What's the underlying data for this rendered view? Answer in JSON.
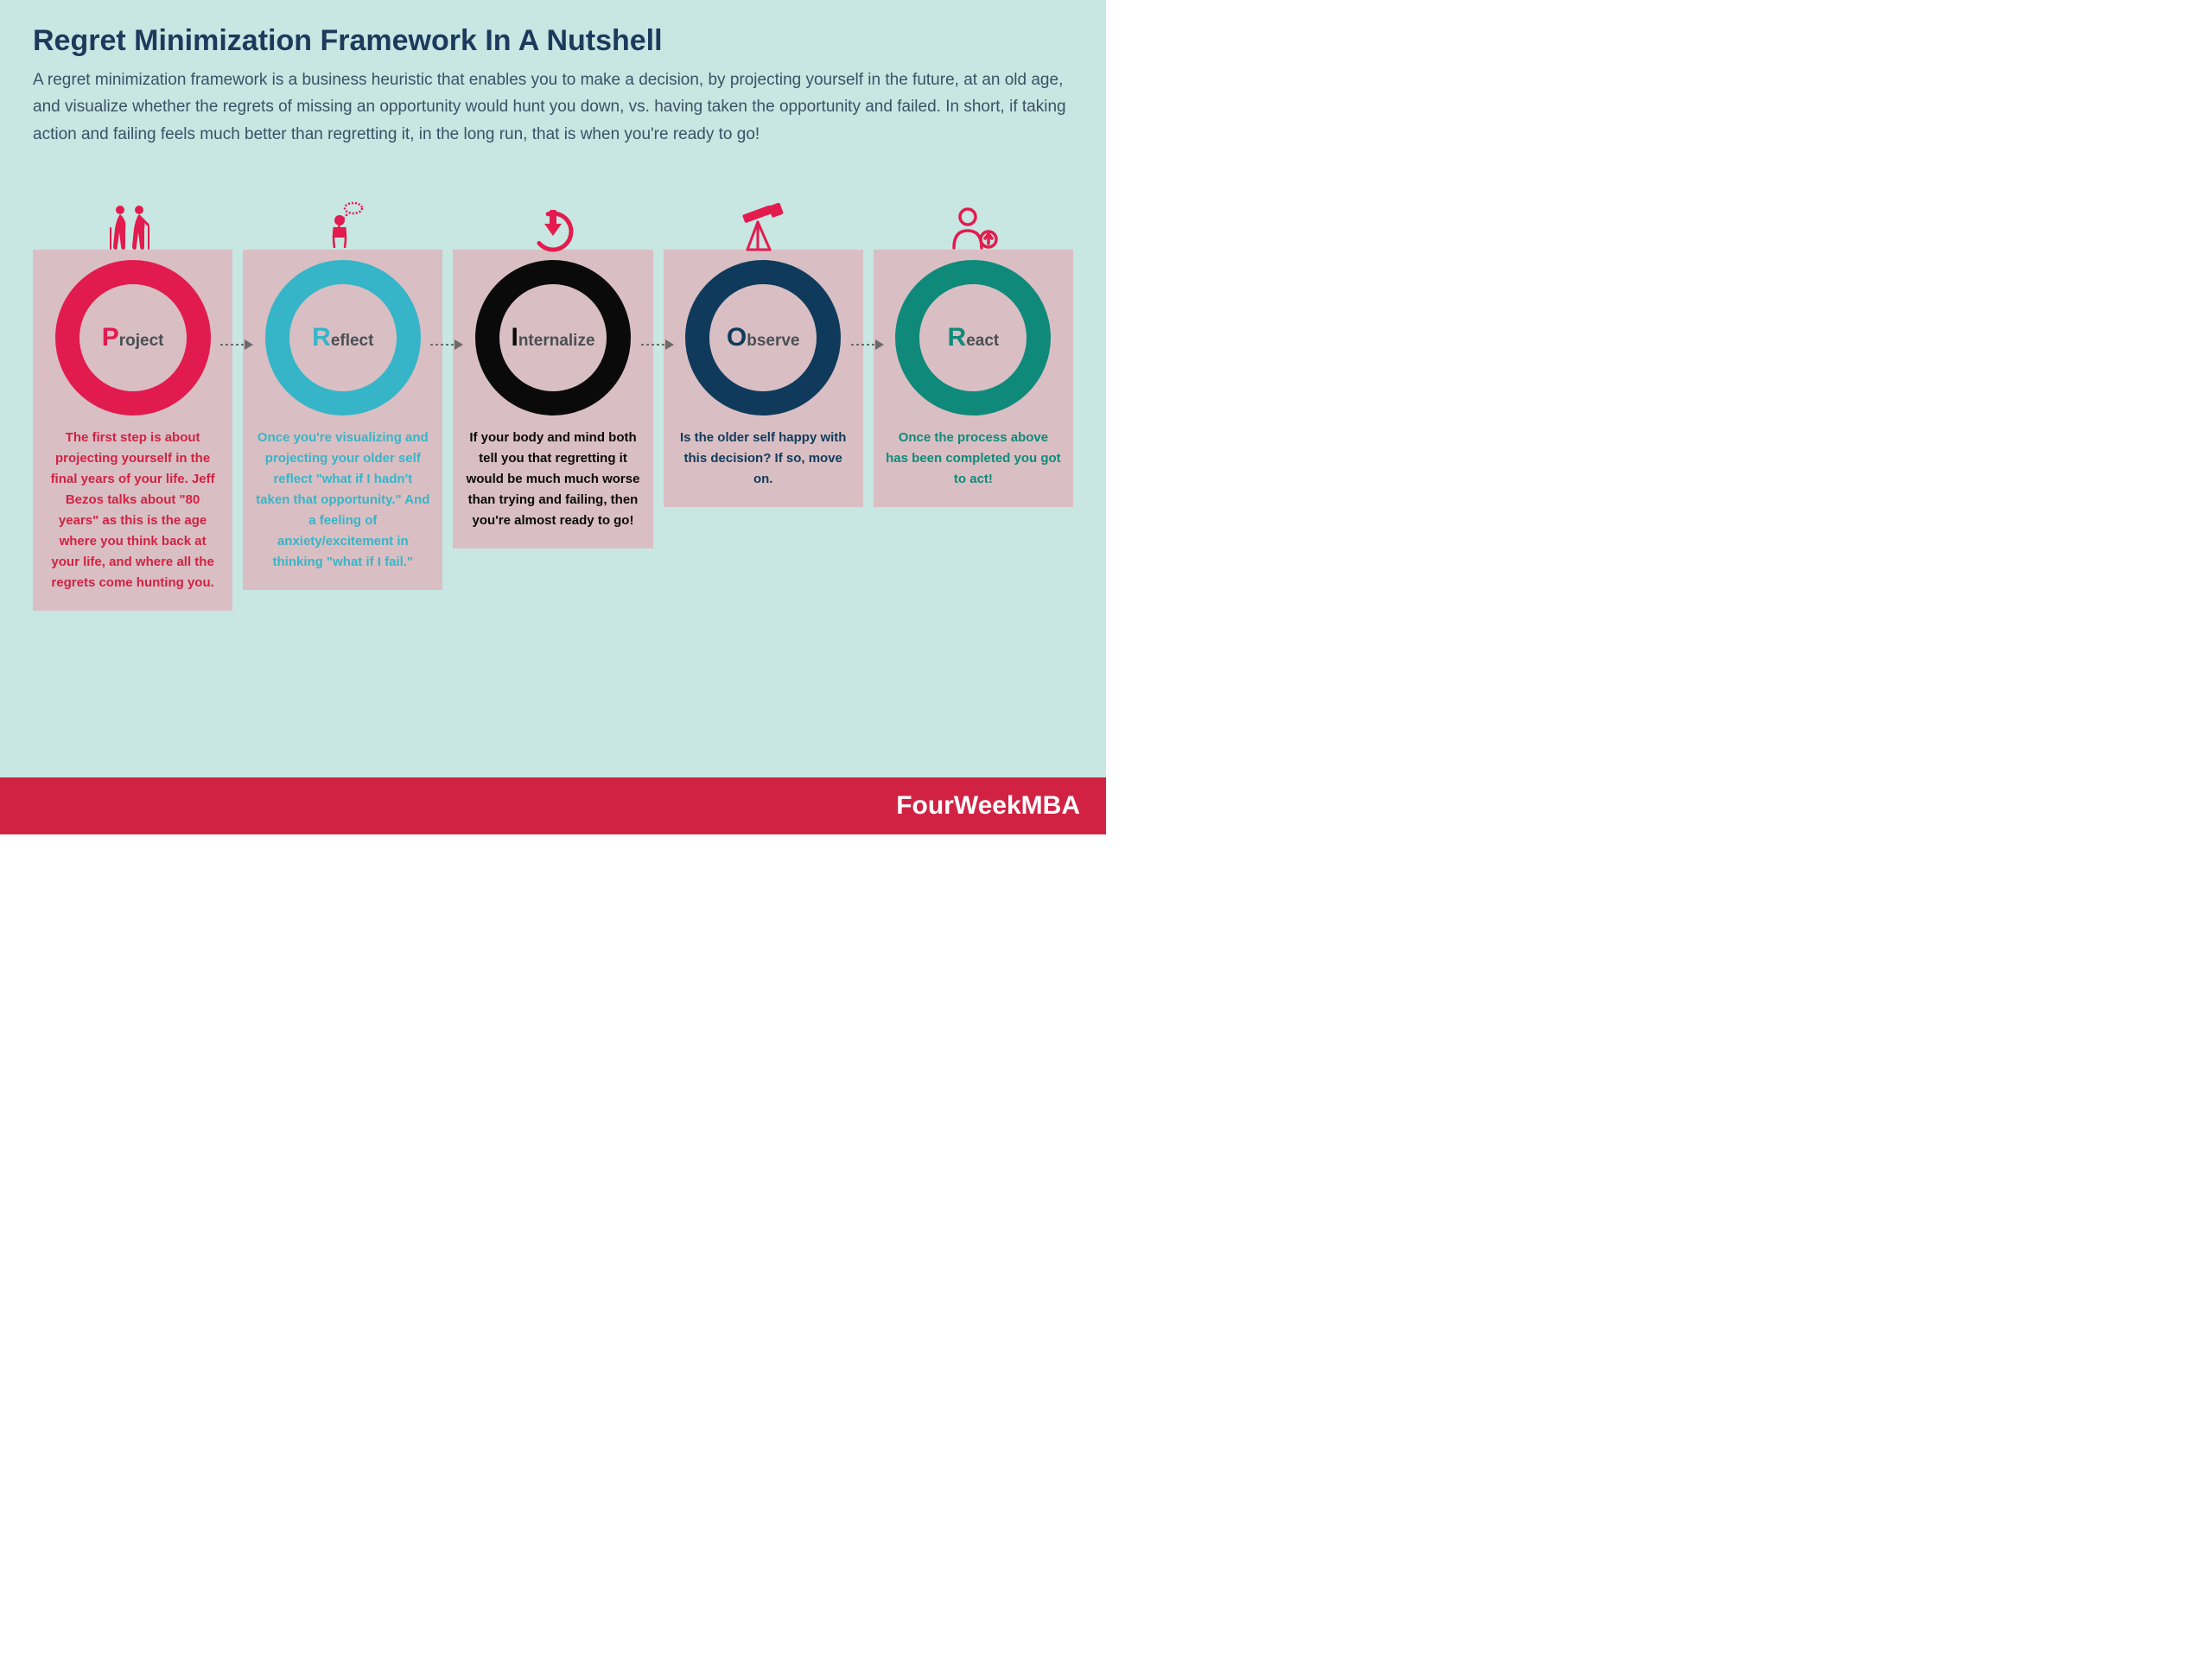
{
  "colors": {
    "background": "#c8e6e2",
    "title": "#1b3a5c",
    "description": "#3a5266",
    "card_bg": "#d9bfc3",
    "footer_bg": "#d12244",
    "footer_text": "#ffffff",
    "arrow": "#6a6a6d",
    "icon": "#e31b4e",
    "label": "#4a4f55"
  },
  "title": "Regret Minimization Framework In A Nutshell",
  "description": "A regret minimization framework is a business heuristic that enables you to make a decision, by projecting yourself in the future, at an old age, and visualize whether the regrets of missing an opportunity would hunt you down, vs. having taken the opportunity and failed. In short, if taking action and failing feels much better than regretting it, in the long run, that is when you're ready to go!",
  "steps": [
    {
      "initial": "P",
      "rest": "roject",
      "ring_color": "#e21b4e",
      "text_color": "#d12244",
      "body": "The first step is about projecting yourself in the final years of your life. Jeff Bezos talks about \"80 years\" as this is the age where you think back at your life, and where all the regrets come hunting you.",
      "icon": "elderly"
    },
    {
      "initial": "R",
      "rest": "eflect",
      "ring_color": "#37b5c8",
      "text_color": "#37b5c8",
      "body": "Once you're visualizing and projecting your older self reflect \"what if I hadn't taken that opportunity.\" And a feeling of anxiety/excitement in thinking \"what if I fail.\"",
      "icon": "thinker"
    },
    {
      "initial": "I",
      "rest": "nternalize",
      "ring_color": "#0a0a0a",
      "text_color": "#0a0a0a",
      "body": "If your body and mind both tell you that regretting it would be much much worse than trying and failing, then you're almost ready to go!",
      "icon": "download"
    },
    {
      "initial": "O",
      "rest": "bserve",
      "ring_color": "#0f3a5c",
      "text_color": "#0f3a5c",
      "body": "Is the older self happy with this decision? If so, move on.",
      "icon": "telescope"
    },
    {
      "initial": "R",
      "rest": "eact",
      "ring_color": "#0f8a7a",
      "text_color": "#0f8a7a",
      "body": "Once the process above has been completed you got to act!",
      "icon": "person-up"
    }
  ],
  "footer": "FourWeekMBA",
  "typography": {
    "title_fontsize": 34,
    "desc_fontsize": 19,
    "step_body_fontsize": 15,
    "ring_border_width": 28,
    "ring_diameter": 180
  }
}
